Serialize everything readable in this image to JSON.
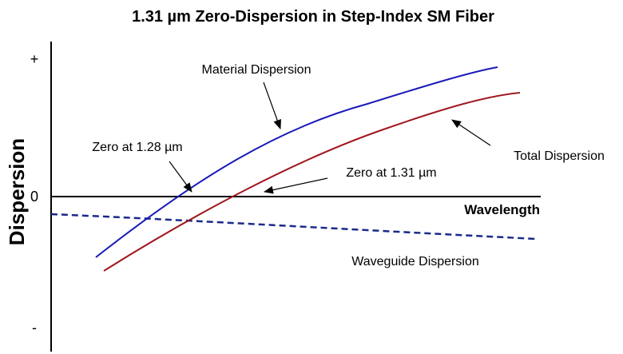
{
  "title": "1.31 µm Zero-Dispersion in Step-Index SM Fiber",
  "y_axis": {
    "label": "Dispersion",
    "plus_mark": "+",
    "zero_mark": "0",
    "minus_mark": "-"
  },
  "x_axis": {
    "label": "Wavelength"
  },
  "annotations": {
    "material": "Material Dispersion",
    "total": "Total Dispersion",
    "waveguide": "Waveguide Dispersion",
    "zero_material": "Zero at 1.28 µm",
    "zero_total": "Zero at 1.31 µm"
  },
  "colors": {
    "material": "#1a1ab8",
    "total": "#a01820",
    "waveguide": "#1a2a8c",
    "axes": "#000000"
  }
}
